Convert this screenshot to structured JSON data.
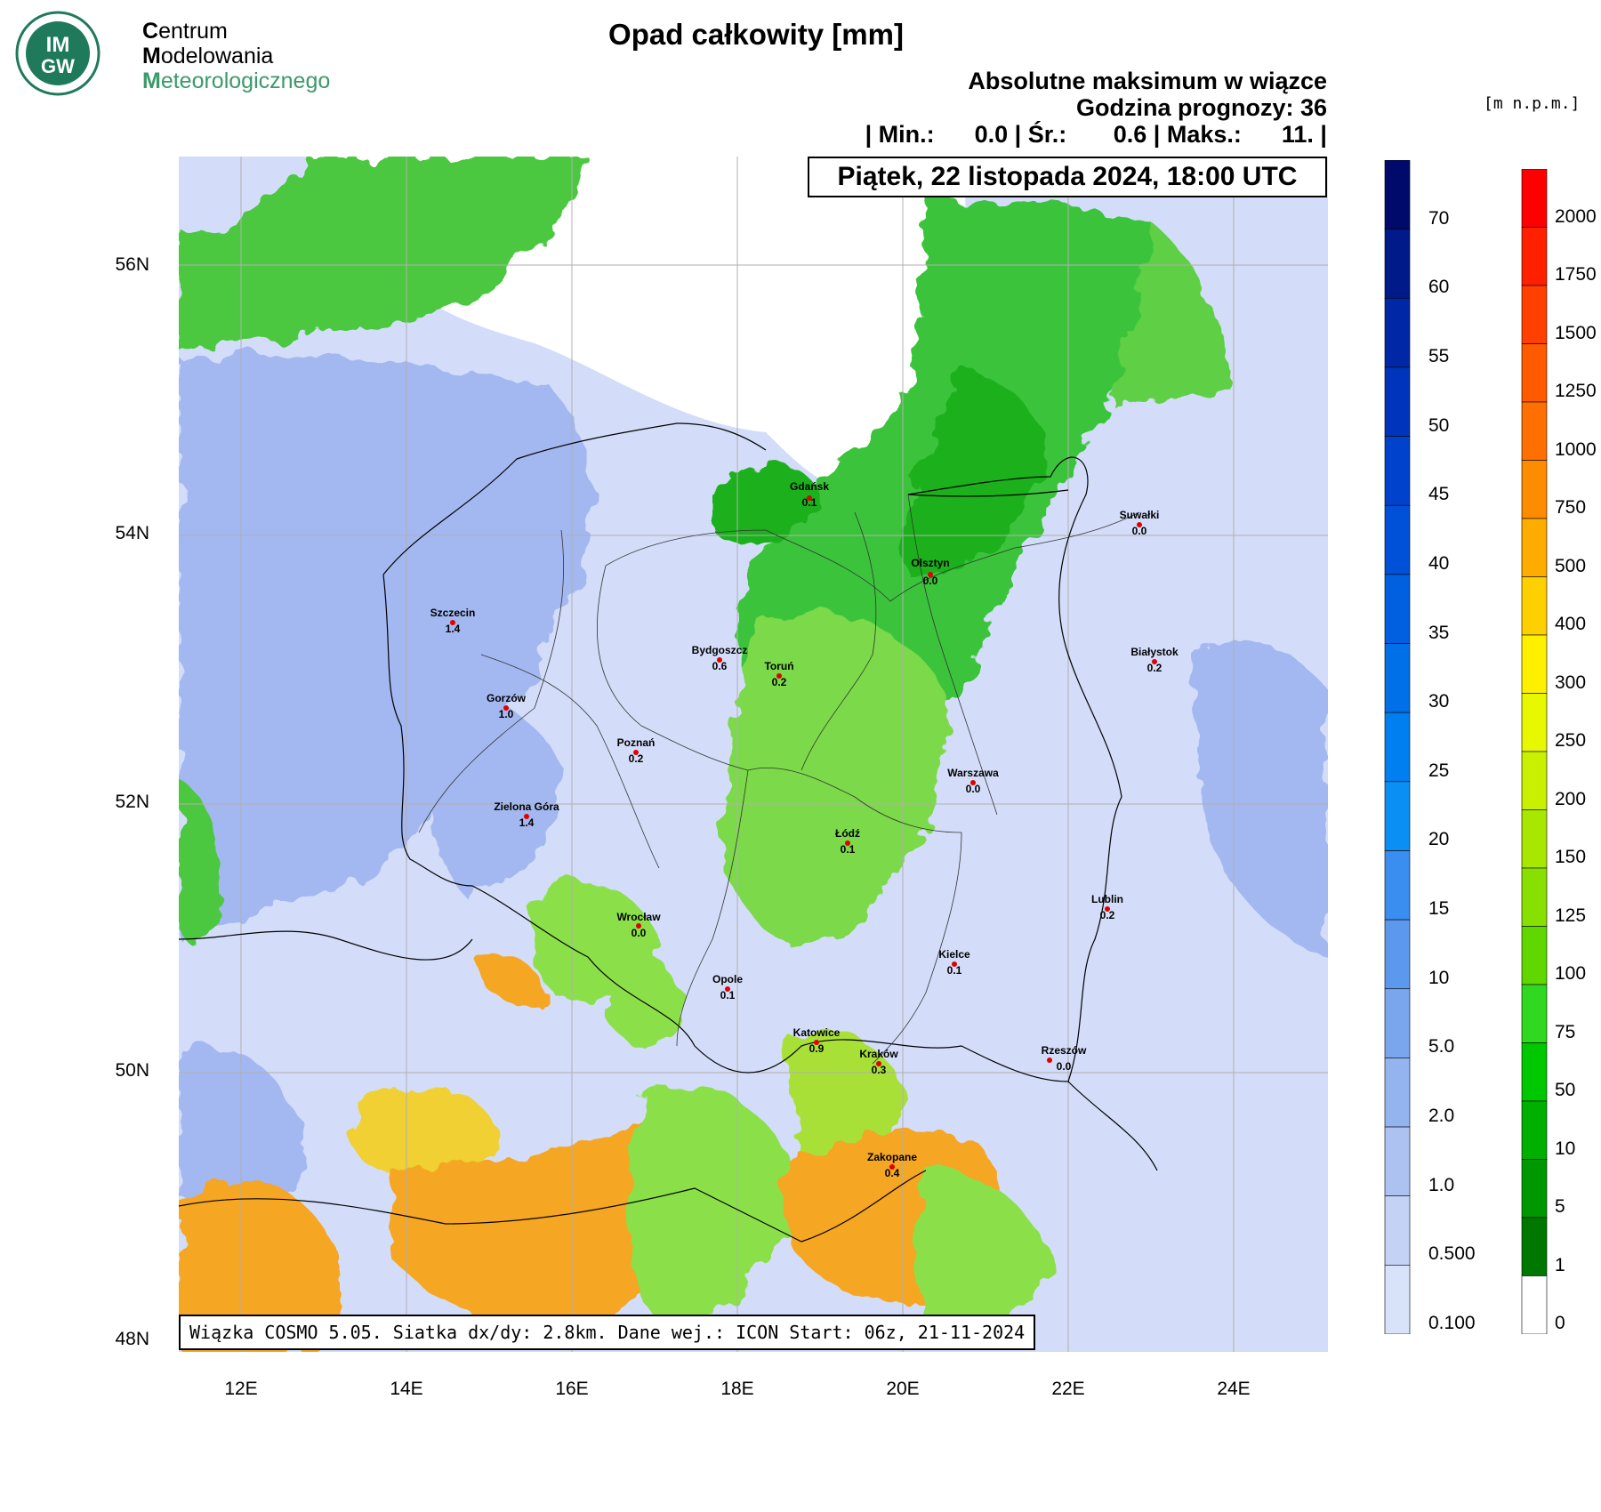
{
  "logo": {
    "badge_text_top": "IM",
    "badge_text_bottom": "GW",
    "line1_first": "C",
    "line1_rest": "entrum",
    "line2_first": "M",
    "line2_rest": "odelowania",
    "line3_first": "M",
    "line3_rest": "eteorologicznego",
    "colors": {
      "badge": "#1f7a5c",
      "line3": "#3a9a6a"
    }
  },
  "header": {
    "title": "Opad całkowity [mm]",
    "subtitle": "Absolutne maksimum w wiązce",
    "forecast_hour": "Godzina prognozy: 36",
    "stats": "| Min.:      0.0 | Śr.:       0.6 | Maks.:      11. |",
    "date": "Piątek, 22 listopada 2024, 18:00 UTC"
  },
  "footer": "Wiązka COSMO 5.05. Siatka dx/dy: 2.8km. Dane wej.: ICON Start: 06z, 21-11-2024",
  "map": {
    "lat_labels": [
      "56N",
      "54N",
      "52N",
      "50N",
      "48N"
    ],
    "lon_labels": [
      "12E",
      "14E",
      "16E",
      "18E",
      "20E",
      "22E",
      "24E"
    ],
    "cities": [
      {
        "name": "Gdańsk",
        "value": "0.1"
      },
      {
        "name": "Suwałki",
        "value": "0.0"
      },
      {
        "name": "Olsztyn",
        "value": "0.0"
      },
      {
        "name": "Szczecin",
        "value": "1.4"
      },
      {
        "name": "Bydgoszcz",
        "value": "0.6"
      },
      {
        "name": "Toruń",
        "value": "0.2"
      },
      {
        "name": "Białystok",
        "value": "0.2"
      },
      {
        "name": "Gorzów",
        "value": "1.0"
      },
      {
        "name": "Poznań",
        "value": "0.2"
      },
      {
        "name": "Warszawa",
        "value": "0.0"
      },
      {
        "name": "Zielona Góra",
        "value": "1.4"
      },
      {
        "name": "Łódź",
        "value": "0.1"
      },
      {
        "name": "Lublin",
        "value": "0.2"
      },
      {
        "name": "Wrocław",
        "value": "0.0"
      },
      {
        "name": "Kielce",
        "value": "0.1"
      },
      {
        "name": "Opole",
        "value": "0.1"
      },
      {
        "name": "Katowice",
        "value": "0.9"
      },
      {
        "name": "Kraków",
        "value": "0.3"
      },
      {
        "name": "Rzeszów",
        "value": "0.0"
      },
      {
        "name": "Zakopane",
        "value": "0.4"
      }
    ],
    "colors": {
      "sea": "#ffffff",
      "light_precip": "#d3ddf9",
      "precip_blue": "#a3b8f0",
      "green_light": "#8be04a",
      "green_dark": "#1fb01f",
      "yellow": "#d9f038",
      "orange": "#f5a623"
    }
  },
  "precip_scale": {
    "labels": [
      "70",
      "60",
      "55",
      "50",
      "45",
      "40",
      "35",
      "30",
      "25",
      "20",
      "15",
      "10",
      "5.0",
      "2.0",
      "1.0",
      "0.500",
      "0.100"
    ],
    "colors": [
      "#000a6b",
      "#001a8a",
      "#0028a6",
      "#0034bc",
      "#0042cc",
      "#0050d8",
      "#0060e0",
      "#0070e8",
      "#0080f0",
      "#0a90f5",
      "#3a8ef0",
      "#5c98ee",
      "#7aa6ee",
      "#94b4f0",
      "#aec2f2",
      "#c4d2f6",
      "#d8e2f8"
    ]
  },
  "height_scale": {
    "unit": "[m n.p.m.]",
    "labels": [
      "2000",
      "1750",
      "1500",
      "1250",
      "1000",
      "750",
      "500",
      "400",
      "300",
      "250",
      "200",
      "150",
      "125",
      "100",
      "75",
      "50",
      "10",
      "5",
      "1",
      "0"
    ],
    "colors": [
      "#ff0000",
      "#ff2000",
      "#ff4000",
      "#ff5a00",
      "#ff7000",
      "#ff8c00",
      "#ffac00",
      "#ffd000",
      "#fff000",
      "#e8f800",
      "#c8f000",
      "#a8e800",
      "#88e000",
      "#60d800",
      "#30d820",
      "#00c800",
      "#00b000",
      "#009800",
      "#007800",
      "#ffffff"
    ]
  }
}
